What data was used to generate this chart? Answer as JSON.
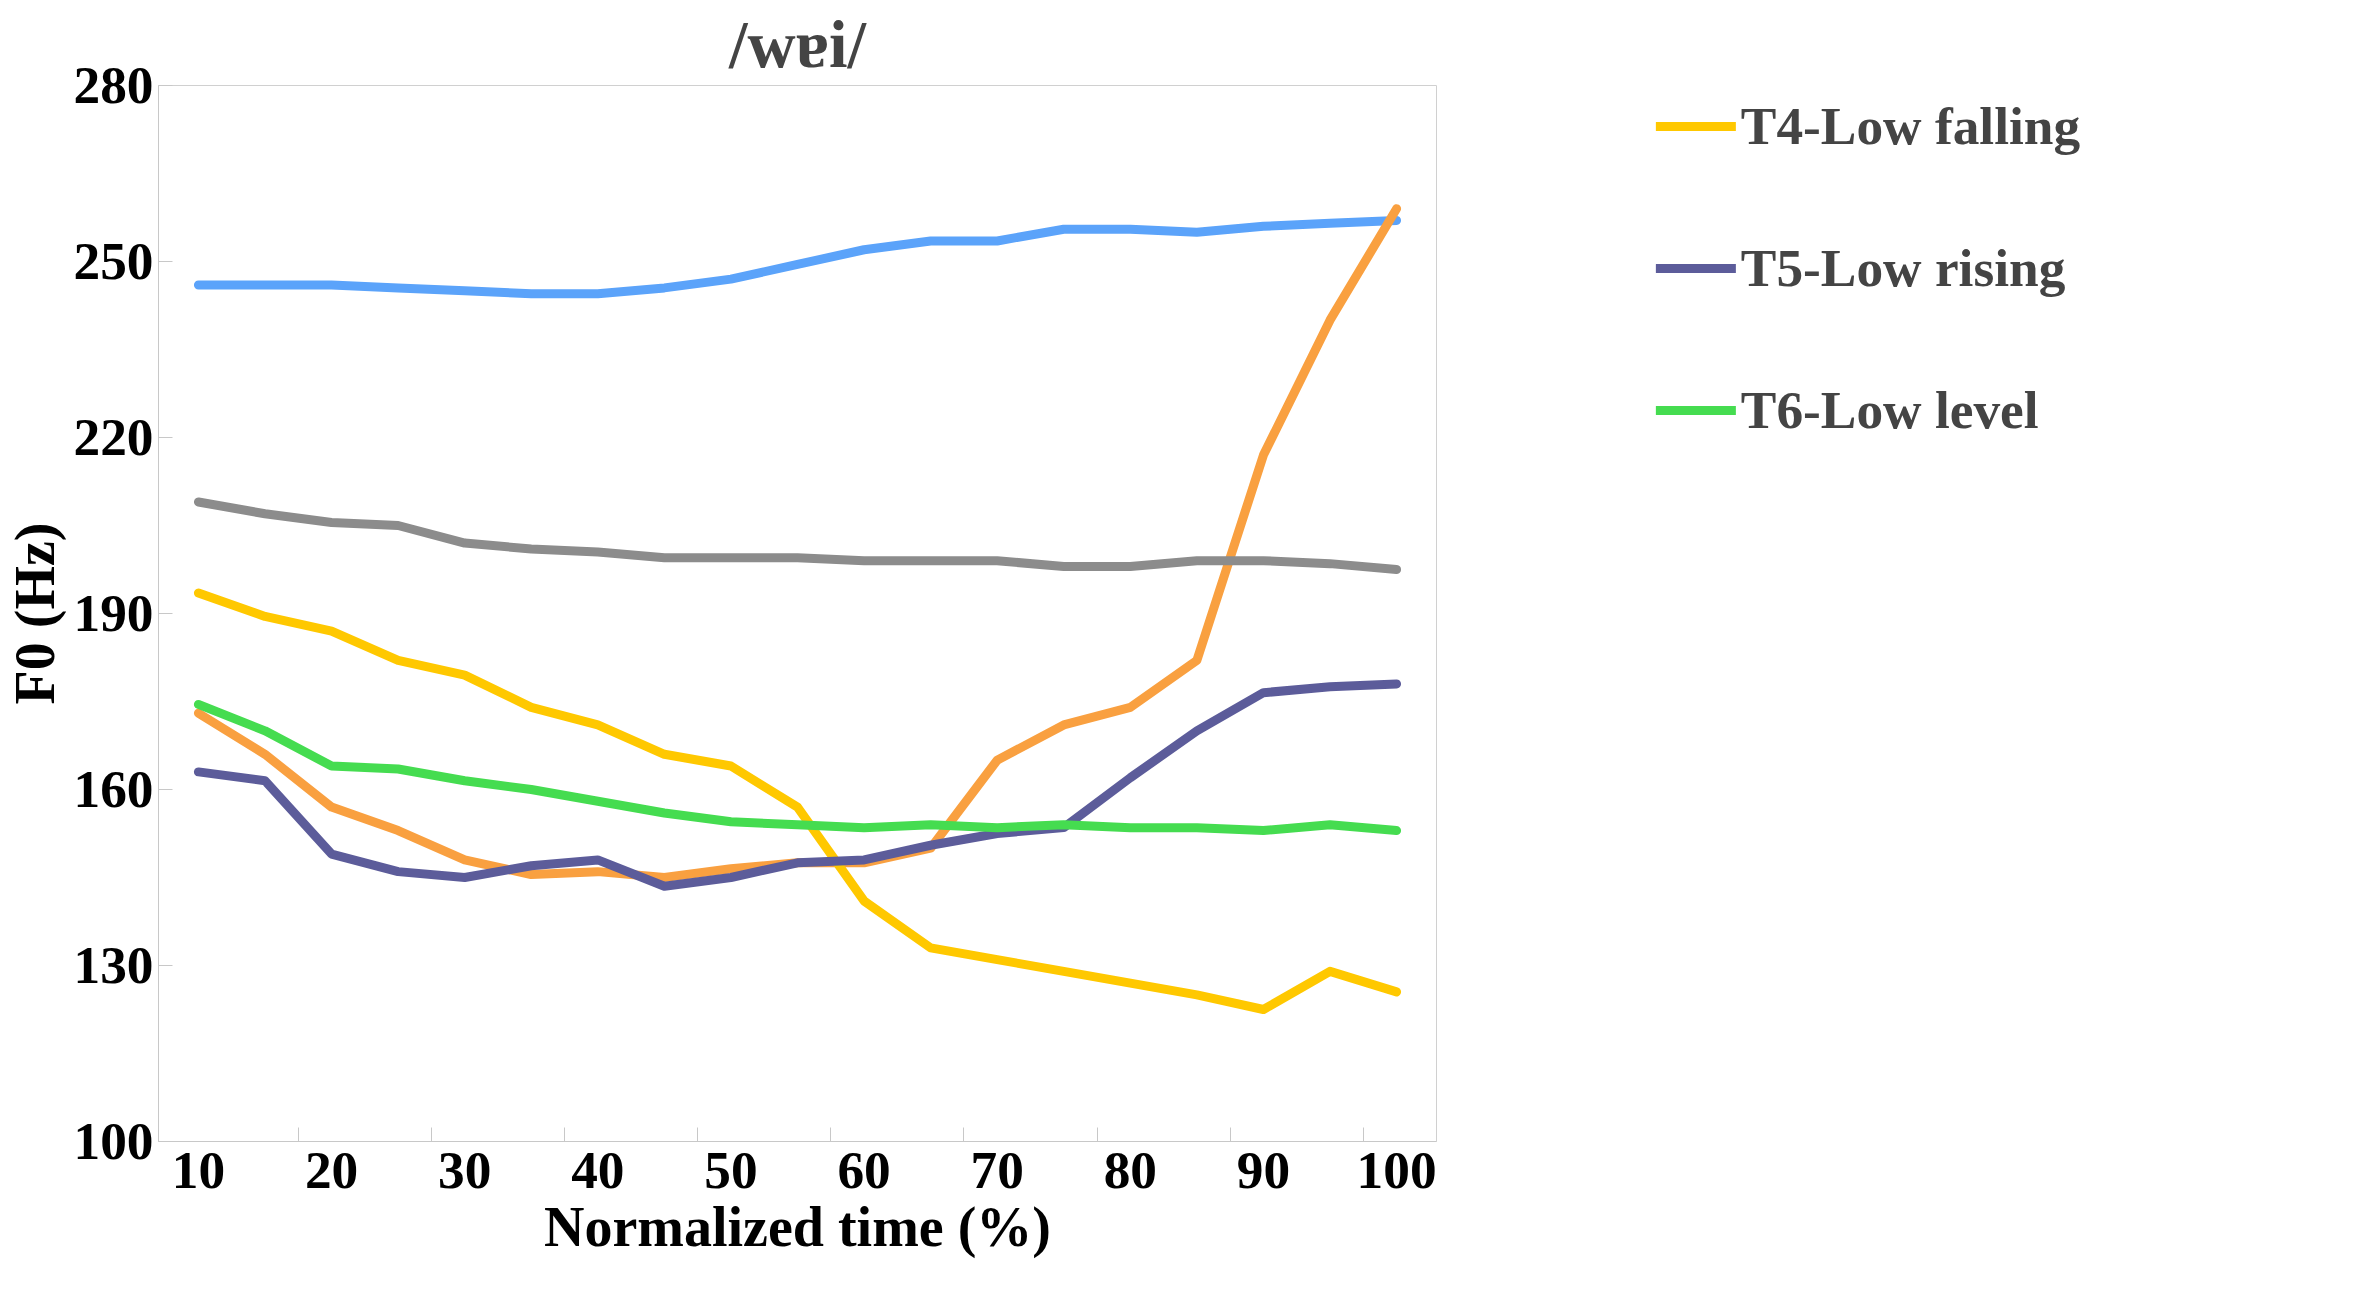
{
  "chart_data": {
    "type": "line",
    "title": "/wɐi/",
    "xlabel": "Normalized time (%)",
    "ylabel": "F0 (Hz)",
    "categories": [
      "10",
      null,
      "20",
      null,
      "30",
      null,
      "40",
      null,
      "50",
      null,
      "60",
      null,
      "70",
      null,
      "80",
      null,
      "90",
      null,
      "100"
    ],
    "ylim": [
      100,
      280
    ],
    "yticks": [
      100,
      130,
      160,
      190,
      220,
      250,
      280
    ],
    "grid": false,
    "legend": "top right",
    "marker": "none",
    "line_style": "solid",
    "series": [
      {
        "color": "#5ba3fa",
        "values": [
          246,
          246,
          246,
          245.5,
          245,
          244.5,
          244.5,
          245.5,
          247,
          249.5,
          252,
          253.5,
          253.5,
          255.5,
          255.5,
          255,
          256,
          256.5,
          257
        ]
      },
      {
        "color": "#f9a040",
        "values": [
          173,
          166,
          157,
          153,
          148,
          145.5,
          146,
          145,
          146.5,
          147.5,
          147.5,
          150,
          165,
          171,
          174,
          182,
          217,
          240,
          259
        ]
      },
      {
        "color": "#8c8c8c",
        "values": [
          209,
          207,
          205.5,
          205,
          202,
          201,
          200.5,
          199.5,
          199.5,
          199.5,
          199,
          199,
          199,
          198,
          198,
          199,
          199,
          198.5,
          197.5
        ]
      },
      {
        "name": "T4-Low falling",
        "color": "#ffc800",
        "values": [
          193.5,
          189.5,
          187,
          182,
          179.5,
          174,
          171,
          166,
          164,
          157,
          141,
          133,
          131,
          129,
          127,
          125,
          122.5,
          129,
          125.5
        ]
      },
      {
        "name": "T5-Low rising",
        "color": "#5c5c9a",
        "values": [
          163,
          161.5,
          149,
          146,
          145,
          147,
          148,
          143.5,
          145,
          147.5,
          148,
          150.5,
          152.5,
          153.5,
          162,
          170,
          176.5,
          177.5,
          178
        ]
      },
      {
        "name": "T6-Low level",
        "color": "#45dc50",
        "values": [
          174.5,
          170,
          164,
          163.5,
          161.5,
          160,
          158,
          156,
          154.5,
          154,
          153.5,
          154,
          153.5,
          154,
          153.5,
          153.5,
          153,
          154,
          153
        ]
      }
    ]
  }
}
